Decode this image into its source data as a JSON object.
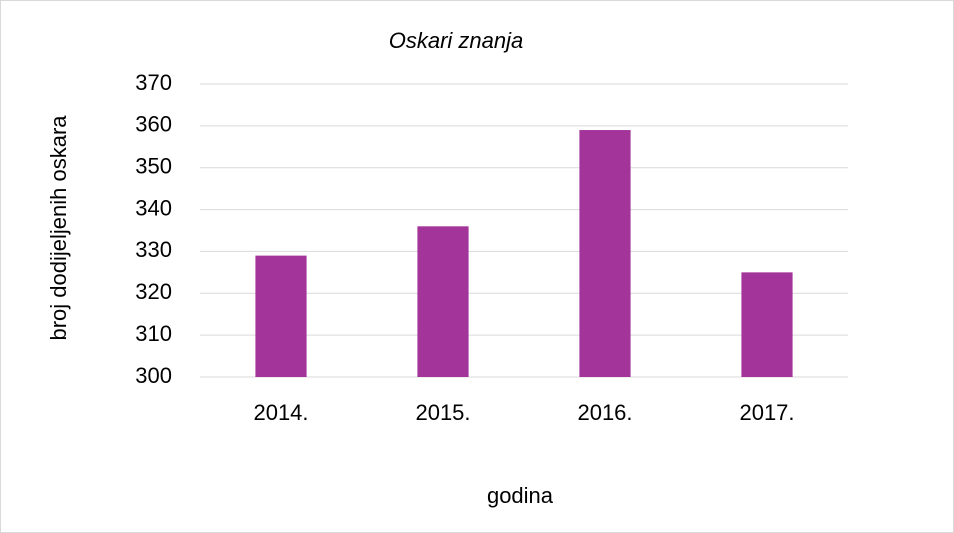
{
  "chart_data": {
    "type": "bar",
    "title": "Oskari znanja",
    "x_label": "godina",
    "y_label": "broj dodijeljenih oskara",
    "categories": [
      "2014.",
      "2015.",
      "2016.",
      "2017."
    ],
    "values": [
      329,
      336,
      359,
      325
    ],
    "color": "#a3359a",
    "ylim": [
      300,
      370
    ],
    "yticks": [
      300,
      310,
      320,
      330,
      340,
      350,
      360,
      370
    ],
    "grid": true
  }
}
